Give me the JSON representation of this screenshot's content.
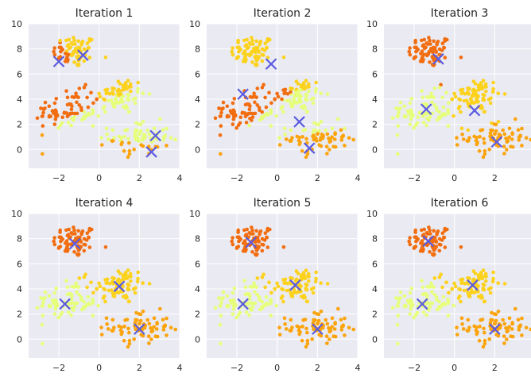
{
  "chart_data": {
    "type": "scatter",
    "grid": true,
    "xlim": [
      -3.5,
      4
    ],
    "ylim": [
      -1.5,
      10
    ],
    "xticks": [
      -2,
      0,
      2,
      4
    ],
    "yticks": [
      0,
      2,
      4,
      6,
      8,
      10
    ],
    "colors": {
      "cluster_orange_dark": "#f26d0f",
      "cluster_yellow": "#fcd21c",
      "cluster_light": "#e6ff7a",
      "cluster_orange": "#fba30a",
      "centroid_marker": "#5b5be0",
      "background": "#eaeaf2"
    },
    "blobs": [
      {
        "center": [
          -1.2,
          7.8
        ],
        "spread": [
          0.55,
          0.65
        ],
        "n": 75
      },
      {
        "center": [
          1.0,
          4.3
        ],
        "spread": [
          0.65,
          0.75
        ],
        "n": 75
      },
      {
        "center": [
          -1.5,
          3.0
        ],
        "spread": [
          0.85,
          0.8
        ],
        "n": 85
      },
      {
        "center": [
          2.0,
          0.9
        ],
        "spread": [
          0.75,
          0.65
        ],
        "n": 75
      }
    ],
    "panels": [
      {
        "title": "Iteration 1",
        "centroids": [
          [
            -2.0,
            7.0
          ],
          [
            -0.8,
            7.5
          ],
          [
            2.8,
            1.1
          ],
          [
            2.6,
            -0.2
          ]
        ],
        "cluster_colors": [
          "cluster_orange_dark",
          "cluster_yellow",
          "cluster_light",
          "cluster_orange"
        ]
      },
      {
        "title": "Iteration 2",
        "centroids": [
          [
            -1.7,
            4.4
          ],
          [
            -0.3,
            6.8
          ],
          [
            1.1,
            2.2
          ],
          [
            1.6,
            0.1
          ]
        ],
        "cluster_colors": [
          "cluster_orange_dark",
          "cluster_yellow",
          "cluster_light",
          "cluster_orange"
        ]
      },
      {
        "title": "Iteration 3",
        "centroids": [
          [
            -0.8,
            7.2
          ],
          [
            1.0,
            3.1
          ],
          [
            -1.4,
            3.2
          ],
          [
            2.1,
            0.6
          ]
        ],
        "cluster_colors": [
          "cluster_orange_dark",
          "cluster_yellow",
          "cluster_light",
          "cluster_orange"
        ]
      },
      {
        "title": "Iteration 4",
        "centroids": [
          [
            -1.2,
            7.6
          ],
          [
            1.0,
            4.2
          ],
          [
            -1.7,
            2.8
          ],
          [
            2.0,
            0.8
          ]
        ],
        "cluster_colors": [
          "cluster_orange_dark",
          "cluster_yellow",
          "cluster_light",
          "cluster_orange"
        ]
      },
      {
        "title": "Iteration 5",
        "centroids": [
          [
            -1.3,
            7.7
          ],
          [
            0.9,
            4.3
          ],
          [
            -1.7,
            2.8
          ],
          [
            2.0,
            0.8
          ]
        ],
        "cluster_colors": [
          "cluster_orange_dark",
          "cluster_yellow",
          "cluster_light",
          "cluster_orange"
        ]
      },
      {
        "title": "Iteration 6",
        "centroids": [
          [
            -1.3,
            7.8
          ],
          [
            0.9,
            4.3
          ],
          [
            -1.6,
            2.8
          ],
          [
            2.0,
            0.8
          ]
        ],
        "cluster_colors": [
          "cluster_orange_dark",
          "cluster_yellow",
          "cluster_light",
          "cluster_orange"
        ]
      }
    ]
  }
}
